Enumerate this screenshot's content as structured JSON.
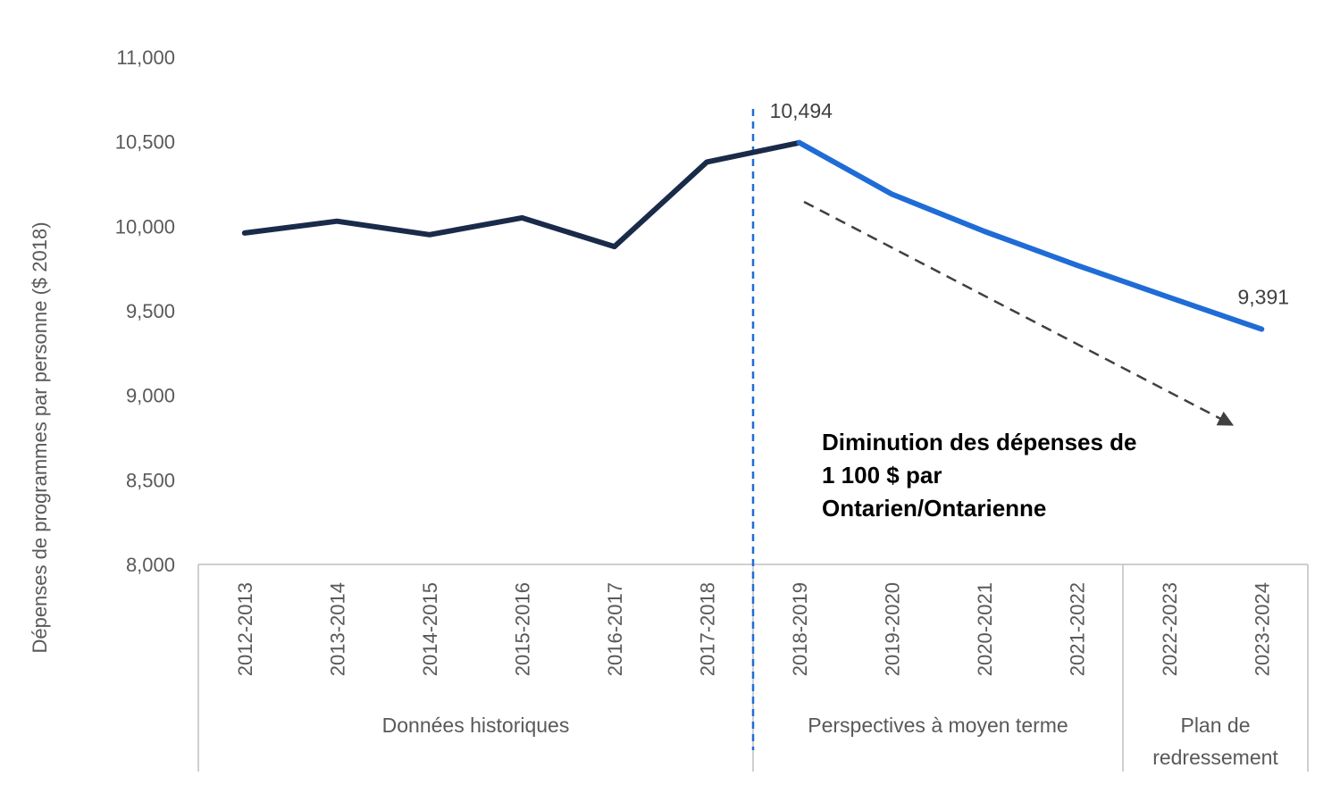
{
  "chart_data": {
    "type": "line",
    "ylabel": "Dépenses de programmes par personne ($ 2018)",
    "ylim": [
      8000,
      11000
    ],
    "yticks": [
      8000,
      8500,
      9000,
      9500,
      10000,
      10500,
      11000
    ],
    "ytick_labels": [
      "8,000",
      "8,500",
      "9,000",
      "9,500",
      "10,000",
      "10,500",
      "11,000"
    ],
    "categories": [
      "2012-2013",
      "2013-2014",
      "2014-2015",
      "2015-2016",
      "2016-2017",
      "2017-2018",
      "2018-2019",
      "2019-2020",
      "2020-2021",
      "2021-2022",
      "2022-2023",
      "2023-2024"
    ],
    "series": [
      {
        "color": "#1a2b4a",
        "values": [
          9960,
          10030,
          9950,
          10050,
          9880,
          10380,
          10494,
          null,
          null,
          null,
          null,
          null
        ]
      },
      {
        "color": "#1f6cd6",
        "values": [
          null,
          null,
          null,
          null,
          null,
          null,
          10494,
          10190,
          9970,
          9770,
          9580,
          9391
        ]
      }
    ],
    "data_labels": [
      {
        "category": "2018-2019",
        "value": 10494,
        "text": "10,494"
      },
      {
        "category": "2023-2024",
        "value": 9391,
        "text": "9,391"
      }
    ],
    "groups": [
      {
        "lines": [
          "Données historiques"
        ],
        "from": 0,
        "to": 5
      },
      {
        "lines": [
          "Perspectives à moyen terme"
        ],
        "from": 6,
        "to": 9
      },
      {
        "lines": [
          "Plan de",
          "redressement"
        ],
        "from": 10,
        "to": 11
      }
    ],
    "annotation": {
      "lines": [
        "Diminution des dépenses de",
        "1 100 $ par",
        "Ontarien/Ontarienne"
      ]
    },
    "divider_color": "#1f6cd6",
    "arrow_color": "#404040",
    "grid": false,
    "legend": "none"
  }
}
